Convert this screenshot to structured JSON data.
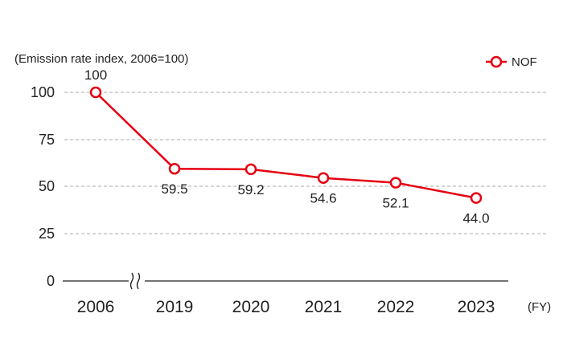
{
  "chart_data": {
    "type": "line",
    "ylabel": "(Emission rate index, 2006=100)",
    "xunit": "(FY)",
    "categories": [
      "2006",
      "2019",
      "2020",
      "2021",
      "2022",
      "2023"
    ],
    "axis_break": "between 2006 and 2019",
    "y_ticks": [
      "0",
      "25",
      "50",
      "75",
      "100"
    ],
    "ylim": [
      0,
      100
    ],
    "grid": "horizontal dashed",
    "legend_position": "top-right",
    "series": [
      {
        "name": "NOF",
        "color": "#e60012",
        "values": [
          100,
          59.5,
          59.2,
          54.6,
          52.1,
          44.0
        ],
        "labels": [
          "100",
          "59.5",
          "59.2",
          "54.6",
          "52.1",
          "44.0"
        ]
      }
    ]
  }
}
